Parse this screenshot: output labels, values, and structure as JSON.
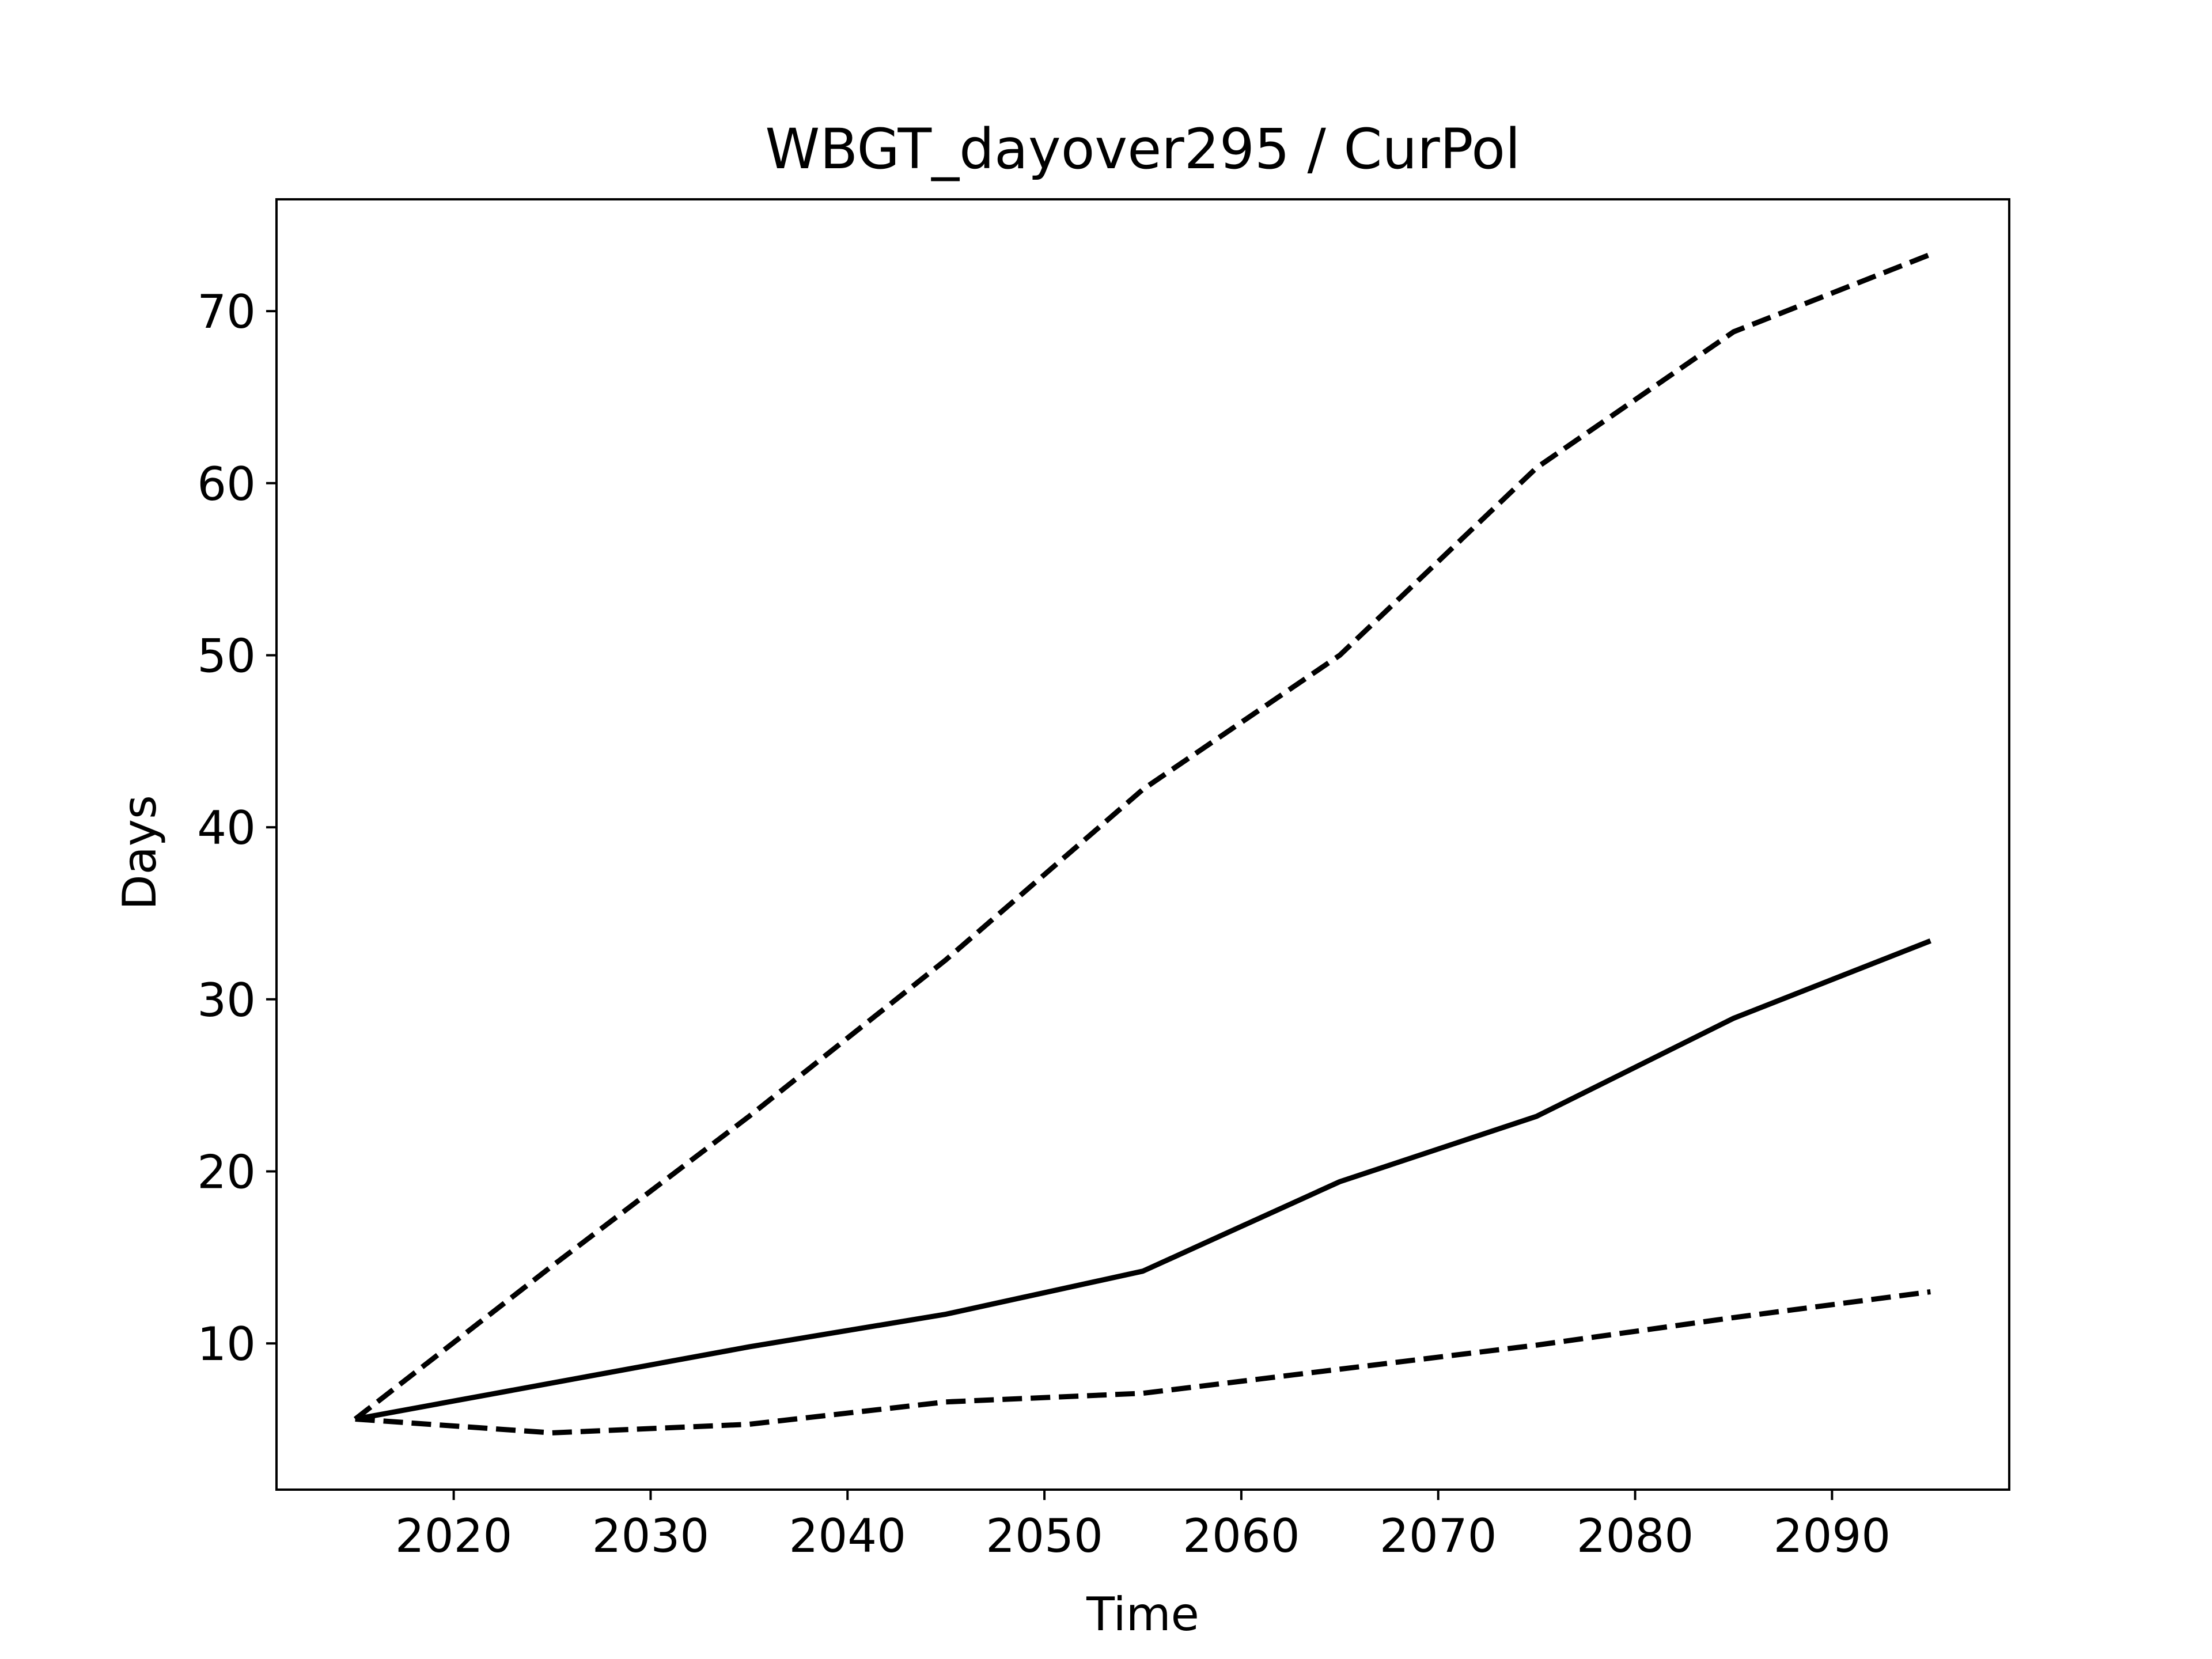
{
  "chart_data": {
    "type": "line",
    "title": "WBGT_dayover295 / CurPol",
    "xlabel": "Time",
    "ylabel": "Days",
    "xlim": [
      2011,
      2099
    ],
    "ylim": [
      1.5,
      76.5
    ],
    "xticks": [
      2020,
      2030,
      2040,
      2050,
      2060,
      2070,
      2080,
      2090
    ],
    "yticks": [
      10,
      20,
      30,
      40,
      50,
      60,
      70
    ],
    "grid": false,
    "line_color": "#000000",
    "x": [
      2015,
      2025,
      2035,
      2045,
      2055,
      2065,
      2075,
      2085,
      2095
    ],
    "series": [
      {
        "style": "dashed",
        "values": [
          5.6,
          14.5,
          23.2,
          32.3,
          42.2,
          50.0,
          60.9,
          68.8,
          73.3
        ]
      },
      {
        "style": "solid",
        "values": [
          5.6,
          7.7,
          9.8,
          11.7,
          14.2,
          19.4,
          23.2,
          28.9,
          33.4
        ]
      },
      {
        "style": "dashed",
        "values": [
          5.6,
          4.8,
          5.3,
          6.6,
          7.1,
          8.5,
          9.9,
          11.5,
          13.0
        ]
      }
    ]
  }
}
